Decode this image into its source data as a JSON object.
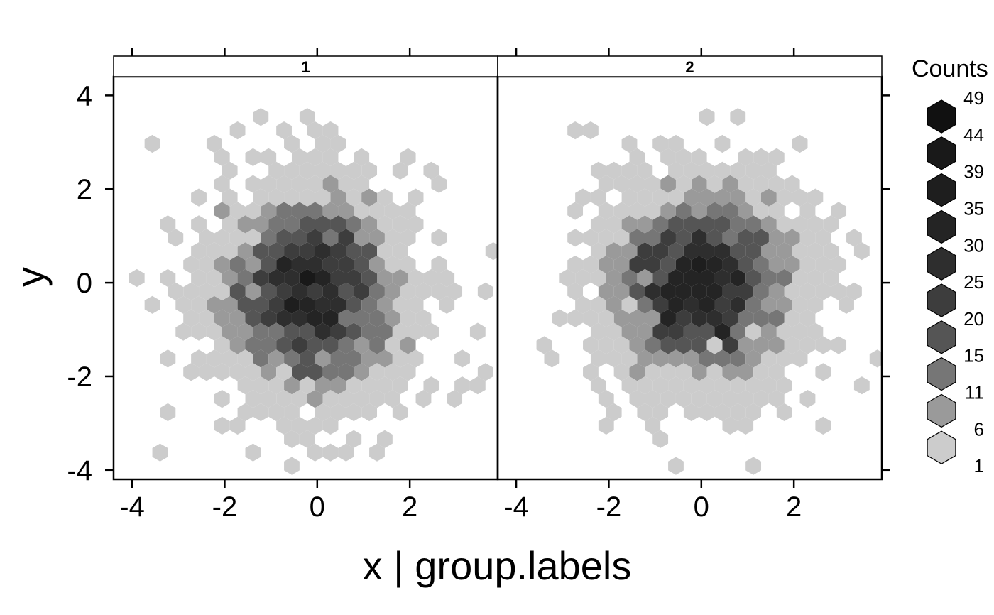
{
  "chart_data": {
    "type": "heatmap",
    "subtype": "hexbin",
    "panels": [
      {
        "label": "1",
        "center": [
          -0.1,
          -0.2
        ],
        "spread": [
          1.05,
          1.15
        ],
        "points": 2500
      },
      {
        "label": "2",
        "center": [
          0.0,
          0.0
        ],
        "spread": [
          1.05,
          1.1
        ],
        "points": 2500
      }
    ],
    "xlabel": "x | group.labels",
    "ylabel": "y",
    "xlim": [
      -4.4,
      3.9
    ],
    "ylim": [
      -4.2,
      4.4
    ],
    "xticks": [
      -4,
      -2,
      0,
      2
    ],
    "xtick_labels": [
      "-4",
      "-2",
      "0",
      "2"
    ],
    "yticks": [
      -4,
      -2,
      0,
      2,
      4
    ],
    "ytick_labels": [
      "-4",
      "-2",
      "0",
      "2",
      "4"
    ],
    "legend": {
      "title": "Counts",
      "placement": "right",
      "breaks": [
        49,
        44,
        39,
        35,
        30,
        25,
        20,
        15,
        11,
        6,
        1
      ],
      "break_labels": [
        "49",
        "44",
        "39",
        "35",
        "30",
        "25",
        "20",
        "15",
        "11",
        "6",
        "1"
      ],
      "colors": [
        "#111111",
        "#191919",
        "#1e1e1e",
        "#242424",
        "#2e2e2e",
        "#3d3d3d",
        "#555555",
        "#767676",
        "#9a9a9a",
        "#cccccc"
      ]
    },
    "grid": false
  }
}
